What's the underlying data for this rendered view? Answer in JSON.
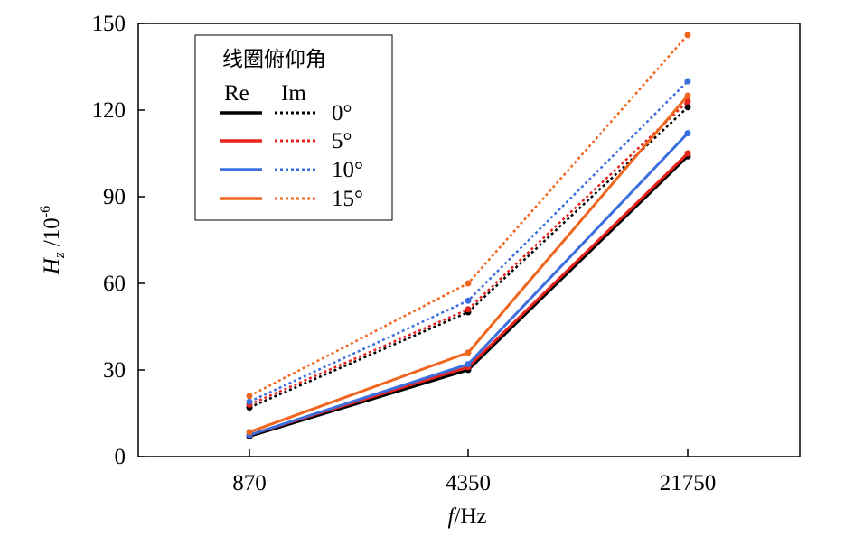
{
  "chart_data": {
    "type": "line",
    "title": "",
    "xlabel": {
      "main": "f",
      "unit": "/Hz"
    },
    "ylabel": {
      "main": "H",
      "sub": "z",
      "unit": " /10",
      "sup": "-6"
    },
    "categories": [
      "870",
      "4350",
      "21750"
    ],
    "ylim": [
      0,
      150
    ],
    "yticks": [
      "0",
      "30",
      "60",
      "90",
      "120",
      "150"
    ],
    "grid": false,
    "legend": {
      "position": "top-left",
      "title": "线圈俯仰角",
      "col_re": "Re",
      "col_im": "Im",
      "entries": [
        "0°",
        "5°",
        "10°",
        "15°"
      ]
    },
    "series": [
      {
        "name": "0°",
        "part": "Re",
        "color": "#000000",
        "values": [
          7,
          30,
          104
        ]
      },
      {
        "name": "0°",
        "part": "Im",
        "color": "#000000",
        "values": [
          17,
          50,
          121
        ]
      },
      {
        "name": "5°",
        "part": "Re",
        "color": "#e8221c",
        "values": [
          7.5,
          31,
          105
        ]
      },
      {
        "name": "5°",
        "part": "Im",
        "color": "#e8221c",
        "values": [
          18,
          51,
          123
        ]
      },
      {
        "name": "10°",
        "part": "Re",
        "color": "#3b6fe0",
        "values": [
          7.5,
          32,
          112
        ]
      },
      {
        "name": "10°",
        "part": "Im",
        "color": "#3b6fe0",
        "values": [
          19,
          54,
          130
        ]
      },
      {
        "name": "15°",
        "part": "Re",
        "color": "#f0661e",
        "values": [
          8.5,
          36,
          125
        ]
      },
      {
        "name": "15°",
        "part": "Im",
        "color": "#f0661e",
        "values": [
          21,
          60,
          146
        ]
      }
    ]
  }
}
